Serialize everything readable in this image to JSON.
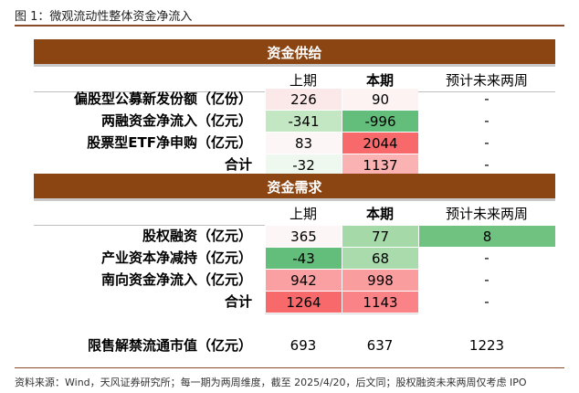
{
  "figure_title": "图 1：微观流动性整体资金净流入",
  "supply": {
    "title": "资金供给",
    "headers": [
      "上期",
      "本期",
      "预计未来两周"
    ],
    "rows": [
      {
        "label": "偏股型公募新发份额（亿份）",
        "prev": "226",
        "curr": "90",
        "forecast": "-",
        "prev_color": "#fbe9e9",
        "curr_color": "#fdf3f3",
        "forecast_color": ""
      },
      {
        "label": "两融资金净流入（亿元）",
        "prev": "-341",
        "curr": "-996",
        "forecast": "-",
        "prev_color": "#c3e6c3",
        "curr_color": "#63be7b",
        "forecast_color": ""
      },
      {
        "label": "股票型ETF净申购（亿元）",
        "prev": "83",
        "curr": "2044",
        "forecast": "-",
        "prev_color": "#fdf6f6",
        "curr_color": "#f8696b",
        "forecast_color": ""
      },
      {
        "label": "合计",
        "prev": "-32",
        "curr": "1137",
        "forecast": "-",
        "prev_color": "#eef8ee",
        "curr_color": "#fbb2b3",
        "forecast_color": ""
      }
    ]
  },
  "demand": {
    "title": "资金需求",
    "headers": [
      "上期",
      "本期",
      "预计未来两周"
    ],
    "rows": [
      {
        "label": "股权融资（亿元）",
        "prev": "365",
        "curr": "77",
        "forecast": "8",
        "prev_color": "#fdf6f6",
        "curr_color": "#a5d9a8",
        "forecast_color": "#6fc27f"
      },
      {
        "label": "产业资本净减持（亿元）",
        "prev": "-43",
        "curr": "68",
        "forecast": "-",
        "prev_color": "#63be7b",
        "curr_color": "#a9dbac",
        "forecast_color": ""
      },
      {
        "label": "南向资金净流入（亿元）",
        "prev": "942",
        "curr": "998",
        "forecast": "-",
        "prev_color": "#faa0a2",
        "curr_color": "#f99d9f",
        "forecast_color": ""
      },
      {
        "label": "合计",
        "prev": "1264",
        "curr": "1143",
        "forecast": "-",
        "prev_color": "#f8696b",
        "curr_color": "#f98386",
        "forecast_color": ""
      }
    ]
  },
  "unlock": {
    "label": "限售解禁流通市值（亿元）",
    "prev": "693",
    "curr": "637",
    "forecast": "1223"
  },
  "source": "资料来源：Wind，天风证券研究所；每一期为两周维度，截至 2025/4/20，后文同；股权融资未来两周仅考虑 IPO"
}
